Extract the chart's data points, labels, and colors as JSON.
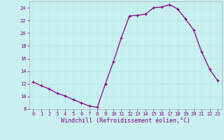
{
  "x": [
    0,
    1,
    2,
    3,
    4,
    5,
    6,
    7,
    8,
    9,
    10,
    11,
    12,
    13,
    14,
    15,
    16,
    17,
    18,
    19,
    20,
    21,
    22,
    23
  ],
  "y": [
    12.3,
    11.7,
    11.2,
    10.5,
    10.1,
    9.5,
    9.0,
    8.5,
    8.3,
    12.0,
    15.5,
    19.3,
    22.7,
    22.8,
    23.0,
    24.0,
    24.1,
    24.5,
    23.8,
    22.2,
    20.5,
    17.0,
    14.3,
    12.5
  ],
  "line_color": "#880088",
  "marker": "+",
  "markersize": 3.5,
  "linewidth": 0.9,
  "markeredgewidth": 0.9,
  "background_color": "#c8f0f0",
  "grid_color": "#aadddd",
  "xlabel": "Windchill (Refroidissement éolien,°C)",
  "ylabel": "",
  "xlim": [
    -0.5,
    23.5
  ],
  "ylim": [
    8,
    25
  ],
  "yticks": [
    8,
    10,
    12,
    14,
    16,
    18,
    20,
    22,
    24
  ],
  "xticks": [
    0,
    1,
    2,
    3,
    4,
    5,
    6,
    7,
    8,
    9,
    10,
    11,
    12,
    13,
    14,
    15,
    16,
    17,
    18,
    19,
    20,
    21,
    22,
    23
  ],
  "tick_label_color": "#880088",
  "tick_label_fontsize": 5.0,
  "xlabel_fontsize": 6.0,
  "xlabel_color": "#880088",
  "spine_color": "#aaaaaa"
}
